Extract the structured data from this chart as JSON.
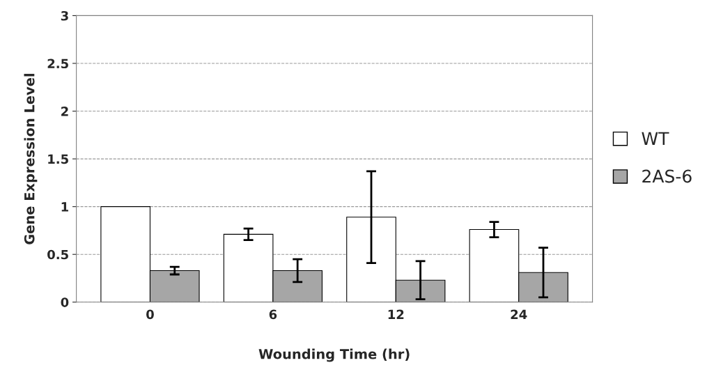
{
  "chart_data": {
    "type": "bar",
    "xlabel": "Wounding Time (hr)",
    "ylabel": "Gene Expression Level",
    "categories": [
      "0",
      "6",
      "12",
      "24"
    ],
    "series": [
      {
        "name": "WT",
        "color": "#ffffff",
        "values": [
          1.0,
          0.71,
          0.89,
          0.76
        ],
        "errors": [
          null,
          0.06,
          0.48,
          0.08
        ]
      },
      {
        "name": "2AS-6",
        "color": "#a6a6a6",
        "values": [
          0.33,
          0.33,
          0.23,
          0.31
        ],
        "errors": [
          0.04,
          0.12,
          0.2,
          0.26
        ]
      }
    ],
    "ylim": [
      0,
      3
    ],
    "yticks": [
      0,
      0.5,
      1,
      1.5,
      2,
      2.5,
      3
    ],
    "grid": "y",
    "legend": "right"
  }
}
